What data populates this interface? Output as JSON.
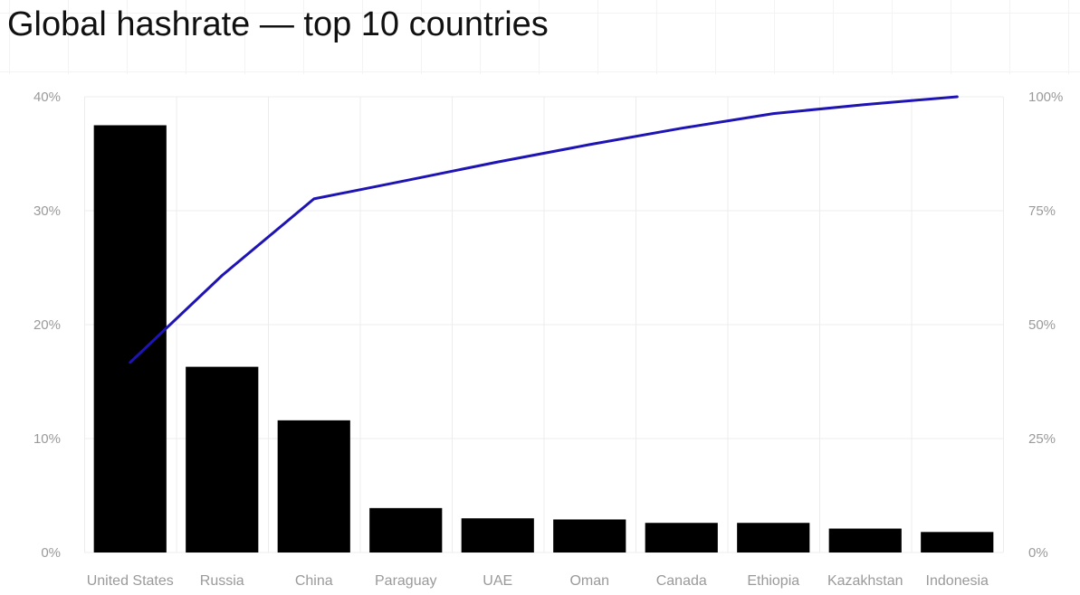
{
  "title": "Global hashrate — top 10 countries",
  "chart_data": {
    "type": "bar",
    "title": "Global hashrate — top 10 countries",
    "categories": [
      "United States",
      "Russia",
      "China",
      "Paraguay",
      "UAE",
      "Oman",
      "Canada",
      "Ethiopia",
      "Kazakhstan",
      "Indonesia"
    ],
    "series": [
      {
        "type": "bar",
        "axis": "left",
        "color": "#000000",
        "values": [
          37.5,
          16.3,
          11.6,
          3.9,
          3.0,
          2.9,
          2.6,
          2.6,
          2.1,
          1.8
        ]
      },
      {
        "type": "line",
        "axis": "right",
        "color": "#1e14b4",
        "values": [
          41.7,
          60.8,
          77.6,
          81.6,
          85.7,
          89.5,
          93.1,
          96.3,
          98.3,
          100.0
        ]
      }
    ],
    "y_left": {
      "ticks": [
        0,
        10,
        20,
        30,
        40
      ],
      "tick_labels": [
        "0%",
        "10%",
        "20%",
        "30%",
        "40%"
      ],
      "ylim": [
        0,
        40
      ]
    },
    "y_right": {
      "ticks": [
        0,
        25,
        50,
        75,
        100
      ],
      "tick_labels": [
        "0%",
        "25%",
        "50%",
        "75%",
        "100%"
      ],
      "ylim": [
        0,
        100
      ]
    },
    "grid": true,
    "legend": "none"
  }
}
